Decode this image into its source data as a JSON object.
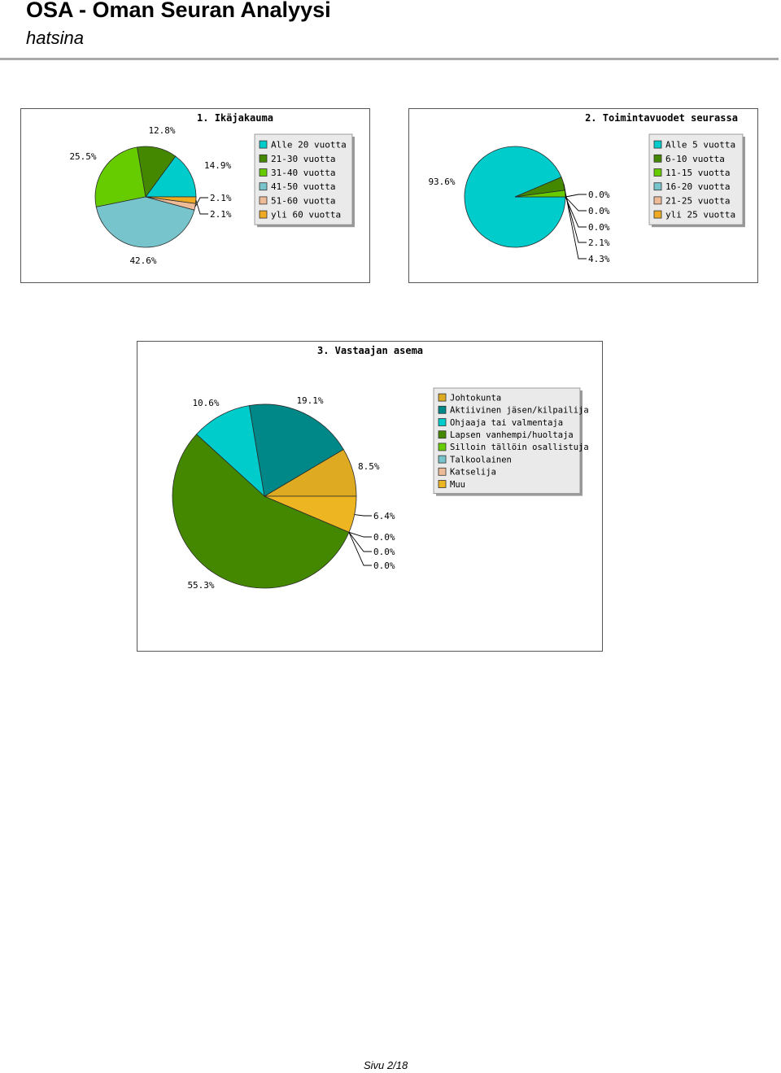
{
  "header": {
    "title": "OSA - Oman Seuran Analyysi",
    "subtitle": "hatsina"
  },
  "footer": {
    "page_label": "Sivu 2/18"
  },
  "chart_data": [
    {
      "type": "pie",
      "title": "1. Ikäjakauma",
      "series": [
        {
          "name": "Alle 20 vuotta",
          "value": 14.9,
          "label": "14.9%",
          "color": "#00cccc"
        },
        {
          "name": "21-30 vuotta",
          "value": 12.8,
          "label": "12.8%",
          "color": "#448800"
        },
        {
          "name": "31-40 vuotta",
          "value": 25.5,
          "label": "25.5%",
          "color": "#66cc00"
        },
        {
          "name": "41-50 vuotta",
          "value": 42.6,
          "label": "42.6%",
          "color": "#77c4cc"
        },
        {
          "name": "51-60 vuotta",
          "value": 2.1,
          "label": "2.1%",
          "color": "#eebb99"
        },
        {
          "name": "yli 60 vuotta",
          "value": 2.1,
          "label": "2.1%",
          "color": "#eeaa22"
        }
      ],
      "legend_position": "right"
    },
    {
      "type": "pie",
      "title": "2. Toimintavuodet seurassa",
      "series": [
        {
          "name": "Alle 5 vuotta",
          "value": 93.6,
          "label": "93.6%",
          "color": "#00cccc"
        },
        {
          "name": "6-10 vuotta",
          "value": 4.3,
          "label": "4.3%",
          "color": "#448800"
        },
        {
          "name": "11-15 vuotta",
          "value": 2.1,
          "label": "2.1%",
          "color": "#66cc00"
        },
        {
          "name": "16-20 vuotta",
          "value": 0.0,
          "label": "0.0%",
          "color": "#77c4cc"
        },
        {
          "name": "21-25 vuotta",
          "value": 0.0,
          "label": "0.0%",
          "color": "#eebb99"
        },
        {
          "name": "yli 25 vuotta",
          "value": 0.0,
          "label": "0.0%",
          "color": "#eeaa22"
        }
      ],
      "legend_position": "right"
    },
    {
      "type": "pie",
      "title": "3. Vastaajan asema",
      "series": [
        {
          "name": "Johtokunta",
          "value": 8.5,
          "label": "8.5%",
          "color": "#ddaa22"
        },
        {
          "name": "Aktiivinen jäsen/kilpailija",
          "value": 19.1,
          "label": "19.1%",
          "color": "#008888"
        },
        {
          "name": "Ohjaaja tai valmentaja",
          "value": 10.6,
          "label": "10.6%",
          "color": "#00cccc"
        },
        {
          "name": "Lapsen vanhempi/huoltaja",
          "value": 55.3,
          "label": "55.3%",
          "color": "#448800"
        },
        {
          "name": "Silloin tällöin osallistuja",
          "value": 0.0,
          "label": "0.0%",
          "color": "#66cc00"
        },
        {
          "name": "Talkoolainen",
          "value": 0.0,
          "label": "0.0%",
          "color": "#77c4cc"
        },
        {
          "name": "Katselija",
          "value": 0.0,
          "label": "0.0%",
          "color": "#eebb99"
        },
        {
          "name": "Muu",
          "value": 6.4,
          "label": "6.4%",
          "color": "#eeb522"
        }
      ],
      "legend_position": "right"
    }
  ]
}
